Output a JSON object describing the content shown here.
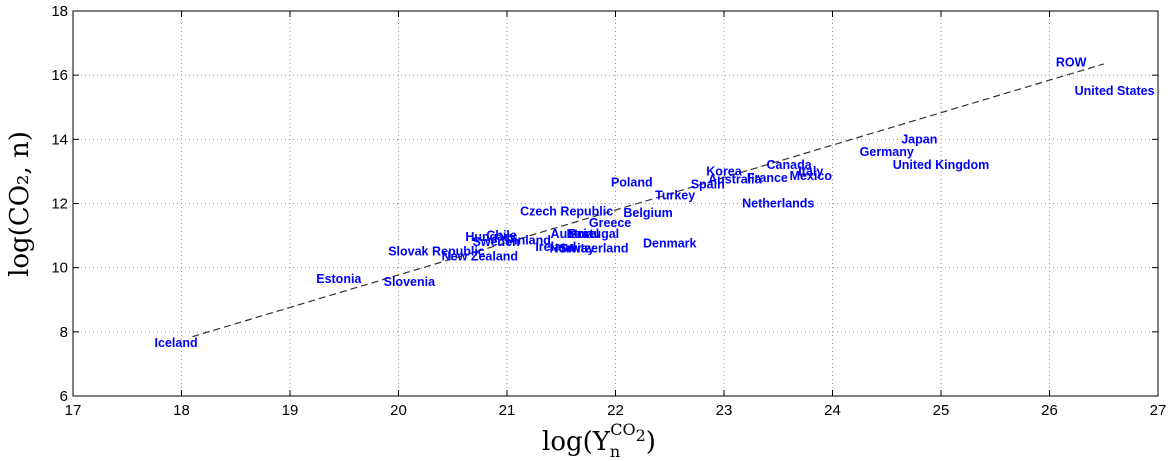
{
  "chart_data": {
    "type": "scatter",
    "title": "",
    "xlabel": {
      "base": "log(Y",
      "sub": "n",
      "sup": "CO",
      "supsub": "2",
      "close": ")"
    },
    "ylabel": "log(CO₂, n)",
    "xlim": [
      17,
      27
    ],
    "ylim": [
      6,
      18
    ],
    "xticks": [
      17,
      18,
      19,
      20,
      21,
      22,
      23,
      24,
      25,
      26,
      27
    ],
    "yticks": [
      6,
      8,
      10,
      12,
      14,
      16,
      18
    ],
    "grid": true,
    "colors": {
      "labels": "#0000ff",
      "fit_line": "#333333",
      "grid": "#999999"
    },
    "fit_line": {
      "x": [
        18.1,
        26.5
      ],
      "y": [
        7.85,
        16.35
      ],
      "style": "dashed"
    },
    "points": [
      {
        "label": "ROW",
        "x": 26.2,
        "y": 16.4
      },
      {
        "label": "United States",
        "x": 26.6,
        "y": 15.5
      },
      {
        "label": "Japan",
        "x": 24.8,
        "y": 14.0
      },
      {
        "label": "Germany",
        "x": 24.5,
        "y": 13.6
      },
      {
        "label": "United Kingdom",
        "x": 25.0,
        "y": 13.2
      },
      {
        "label": "Canada",
        "x": 23.6,
        "y": 13.2
      },
      {
        "label": "Korea",
        "x": 23.0,
        "y": 13.0
      },
      {
        "label": "Italy",
        "x": 23.8,
        "y": 13.0
      },
      {
        "label": "Australia",
        "x": 23.1,
        "y": 12.75
      },
      {
        "label": "France",
        "x": 23.4,
        "y": 12.8
      },
      {
        "label": "Mexico",
        "x": 23.8,
        "y": 12.85
      },
      {
        "label": "Poland",
        "x": 22.15,
        "y": 12.65
      },
      {
        "label": "Spain",
        "x": 22.85,
        "y": 12.6
      },
      {
        "label": "Turkey",
        "x": 22.55,
        "y": 12.25
      },
      {
        "label": "Netherlands",
        "x": 23.5,
        "y": 12.0
      },
      {
        "label": "Czech Republic",
        "x": 21.55,
        "y": 11.75
      },
      {
        "label": "Belgium",
        "x": 22.3,
        "y": 11.7
      },
      {
        "label": "Greece",
        "x": 21.95,
        "y": 11.4
      },
      {
        "label": "Austria",
        "x": 21.6,
        "y": 11.05
      },
      {
        "label": "Israel",
        "x": 21.7,
        "y": 11.05
      },
      {
        "label": "Portugal",
        "x": 21.8,
        "y": 11.05
      },
      {
        "label": "Hungary",
        "x": 20.85,
        "y": 10.95
      },
      {
        "label": "Chile",
        "x": 20.95,
        "y": 11.0
      },
      {
        "label": "Sweden",
        "x": 20.9,
        "y": 10.8
      },
      {
        "label": "Finland",
        "x": 21.2,
        "y": 10.85
      },
      {
        "label": "Ireland",
        "x": 21.45,
        "y": 10.65
      },
      {
        "label": "Norway",
        "x": 21.6,
        "y": 10.6
      },
      {
        "label": "Switzerland",
        "x": 21.8,
        "y": 10.6
      },
      {
        "label": "Denmark",
        "x": 22.5,
        "y": 10.75
      },
      {
        "label": "Slovak Republic",
        "x": 20.35,
        "y": 10.5
      },
      {
        "label": "New Zealand",
        "x": 20.75,
        "y": 10.35
      },
      {
        "label": "Estonia",
        "x": 19.45,
        "y": 9.65
      },
      {
        "label": "Slovenia",
        "x": 20.1,
        "y": 9.55
      },
      {
        "label": "Iceland",
        "x": 17.95,
        "y": 7.65
      }
    ]
  }
}
